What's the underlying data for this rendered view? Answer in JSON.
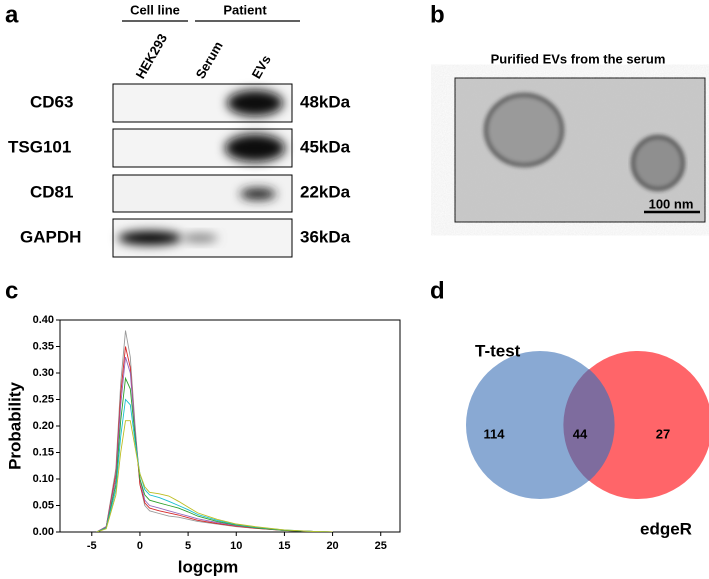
{
  "panel_a": {
    "label": "a",
    "groups": [
      "Cell line",
      "Patient"
    ],
    "lanes": [
      "HEK293",
      "Serum",
      "EVs"
    ],
    "rows": [
      {
        "protein": "CD63",
        "size": "48kDa"
      },
      {
        "protein": "TSG101",
        "size": "45kDa"
      },
      {
        "protein": "CD81",
        "size": "22kDa"
      },
      {
        "protein": "GAPDH",
        "size": "36kDa"
      }
    ]
  },
  "panel_b": {
    "label": "b",
    "title": "Purified EVs from the serum",
    "scale_bar": "100 nm"
  },
  "chart_data": {
    "type": "line",
    "panel_label": "c",
    "x_label": "logcpm",
    "y_label": "Probability",
    "x": [
      -4.5,
      -3.5,
      -2.5,
      -2,
      -1.5,
      -1,
      -0.5,
      0,
      0.5,
      1,
      2,
      3,
      4,
      5,
      6,
      8,
      10,
      12,
      15,
      18,
      20
    ],
    "series": [
      {
        "color": "#999999",
        "values": [
          0,
          0.01,
          0.12,
          0.28,
          0.38,
          0.33,
          0.2,
          0.09,
          0.05,
          0.04,
          0.035,
          0.03,
          0.028,
          0.024,
          0.02,
          0.015,
          0.01,
          0.007,
          0.003,
          0.001,
          0
        ]
      },
      {
        "color": "#d62728",
        "values": [
          0,
          0.01,
          0.11,
          0.26,
          0.35,
          0.31,
          0.19,
          0.09,
          0.055,
          0.045,
          0.04,
          0.036,
          0.032,
          0.027,
          0.022,
          0.016,
          0.011,
          0.007,
          0.003,
          0.001,
          0
        ]
      },
      {
        "color": "#9467bd",
        "values": [
          0,
          0.01,
          0.1,
          0.24,
          0.33,
          0.3,
          0.19,
          0.1,
          0.06,
          0.05,
          0.045,
          0.04,
          0.035,
          0.03,
          0.025,
          0.018,
          0.012,
          0.008,
          0.003,
          0.001,
          0
        ]
      },
      {
        "color": "#2ca02c",
        "values": [
          0,
          0.008,
          0.09,
          0.21,
          0.29,
          0.27,
          0.18,
          0.1,
          0.07,
          0.06,
          0.055,
          0.05,
          0.045,
          0.038,
          0.03,
          0.02,
          0.013,
          0.008,
          0.003,
          0.001,
          0
        ]
      },
      {
        "color": "#17becf",
        "values": [
          0,
          0.007,
          0.08,
          0.18,
          0.25,
          0.24,
          0.17,
          0.11,
          0.08,
          0.07,
          0.065,
          0.058,
          0.05,
          0.042,
          0.033,
          0.022,
          0.014,
          0.009,
          0.004,
          0.001,
          0
        ]
      },
      {
        "color": "#bcbd22",
        "values": [
          0,
          0.006,
          0.07,
          0.15,
          0.21,
          0.21,
          0.16,
          0.11,
          0.085,
          0.075,
          0.072,
          0.068,
          0.058,
          0.047,
          0.036,
          0.024,
          0.015,
          0.01,
          0.004,
          0.001,
          0
        ]
      }
    ],
    "xlim": [
      -8.3,
      27
    ],
    "xticks": [
      -5,
      0,
      5,
      10,
      15,
      20,
      25
    ],
    "ylim": [
      0,
      0.4
    ],
    "yticks": [
      {
        "value": 0,
        "label": "0.00"
      },
      {
        "value": 0.05,
        "label": "0.05"
      },
      {
        "value": 0.1,
        "label": "0.10"
      },
      {
        "value": 0.15,
        "label": "0.15"
      },
      {
        "value": 0.2,
        "label": "0.20"
      },
      {
        "value": 0.25,
        "label": "0.25"
      },
      {
        "value": 0.3,
        "label": "0.30"
      },
      {
        "value": 0.35,
        "label": "0.35"
      },
      {
        "value": 0.4,
        "label": "0.40"
      }
    ]
  },
  "panel_d": {
    "label": "d",
    "sets": [
      {
        "name": "T-test",
        "only": "114"
      },
      {
        "name": "edgeR",
        "only": "27"
      }
    ],
    "overlap": "44"
  }
}
